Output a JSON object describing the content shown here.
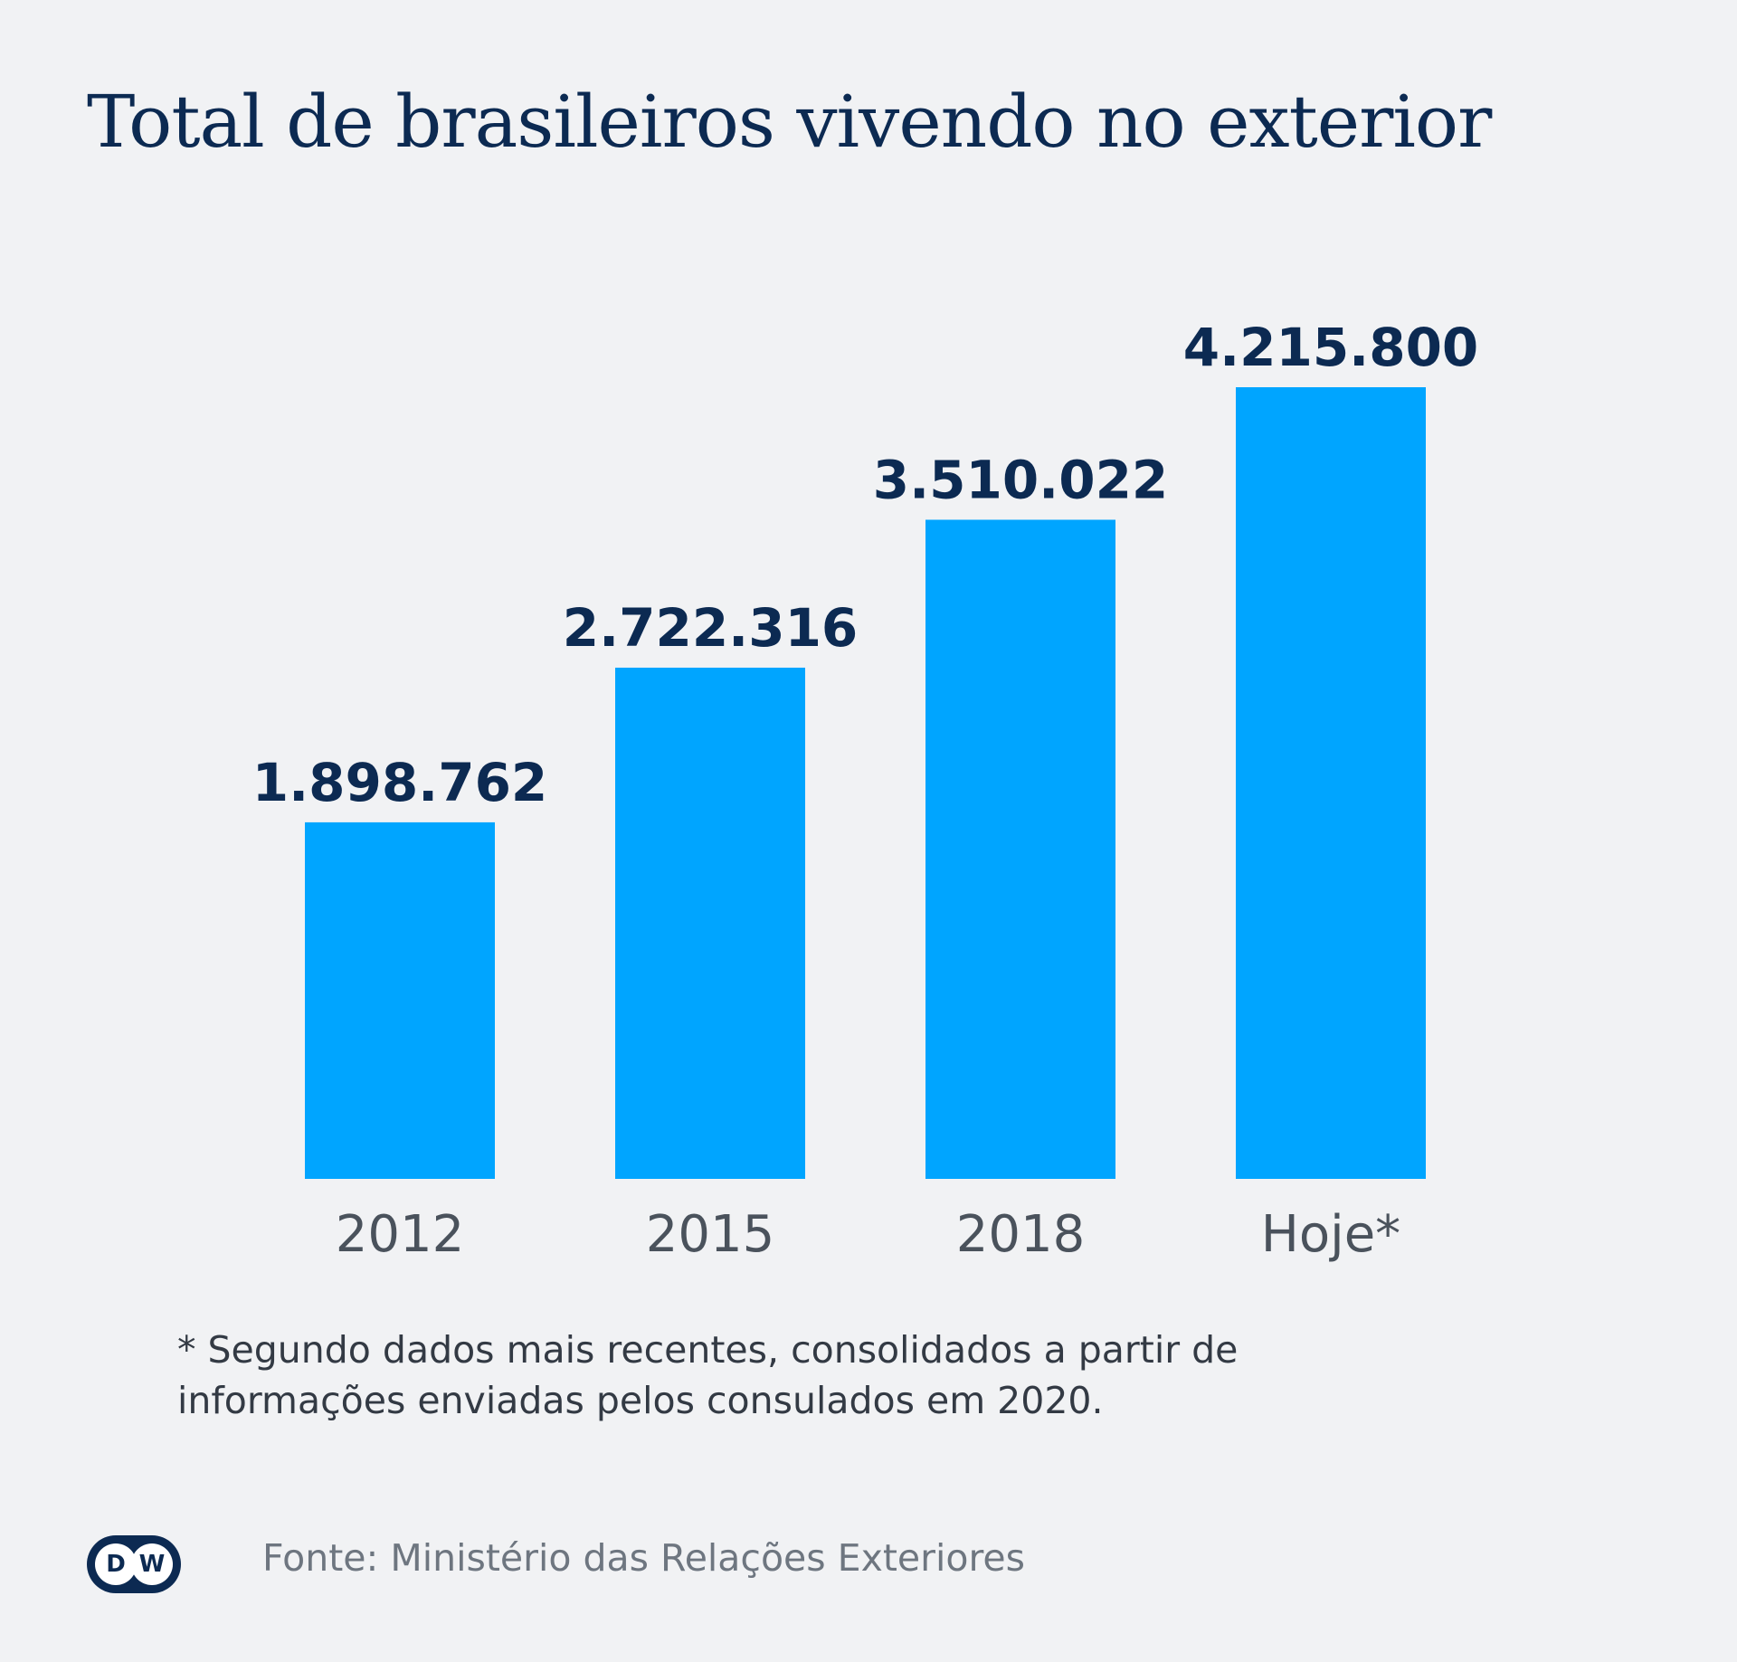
{
  "chart_data": {
    "type": "bar",
    "title": "Total de brasileiros vivendo no exterior",
    "categories": [
      "2012",
      "2015",
      "2018",
      "Hoje*"
    ],
    "values": [
      1898762,
      2722316,
      3510022,
      4215800
    ],
    "value_labels": [
      "1.898.762",
      "2.722.316",
      "3.510.022",
      "4.215.800"
    ],
    "ylim": [
      0,
      4760000
    ],
    "grid": false,
    "legend": "none",
    "colors": {
      "bar": "#00a5ff",
      "value_label": "#0c2a52",
      "category_label": "#4a525c"
    }
  },
  "footnote": {
    "line1": "* Segundo dados mais recentes, consolidados a partir de",
    "line2": "informações enviadas pelos consulados em 2020."
  },
  "source": "Fonte: Ministério das Relações Exteriores",
  "logo": {
    "text": "DW",
    "left": "D",
    "right": "W"
  }
}
